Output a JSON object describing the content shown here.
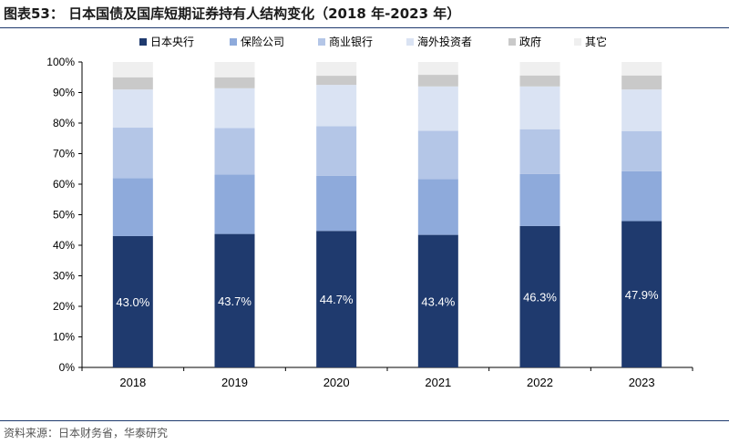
{
  "title": "图表53：  日本国债及国库短期证券持有人结构变化（2018 年-2023 年）",
  "source": "资料来源：日本财务省，华泰研究",
  "chart_data": {
    "type": "bar",
    "stacked": true,
    "normalized": true,
    "categories": [
      "2018",
      "2019",
      "2020",
      "2021",
      "2022",
      "2023"
    ],
    "series": [
      {
        "name": "日本央行",
        "color": "#1f3a6e",
        "values": [
          43.0,
          43.7,
          44.7,
          43.4,
          46.3,
          47.9
        ],
        "labels": [
          "43.0%",
          "43.7%",
          "44.7%",
          "43.4%",
          "46.3%",
          "47.9%"
        ]
      },
      {
        "name": "保险公司",
        "color": "#8eaadb",
        "values": [
          19.0,
          19.5,
          18.0,
          18.3,
          17.0,
          16.3
        ]
      },
      {
        "name": "商业银行",
        "color": "#b4c6e7",
        "values": [
          16.5,
          15.2,
          16.3,
          15.8,
          14.7,
          13.2
        ]
      },
      {
        "name": "海外投资者",
        "color": "#dae3f3",
        "values": [
          12.5,
          13.0,
          13.5,
          14.5,
          14.0,
          13.6
        ]
      },
      {
        "name": "政府",
        "color": "#c9c9c9",
        "values": [
          4.0,
          3.6,
          3.0,
          3.8,
          3.6,
          4.6
        ]
      },
      {
        "name": "其它",
        "color": "#efefef",
        "values": [
          5.0,
          5.0,
          4.5,
          4.2,
          4.4,
          4.4
        ]
      }
    ],
    "yticks": [
      "0%",
      "10%",
      "20%",
      "30%",
      "40%",
      "50%",
      "60%",
      "70%",
      "80%",
      "90%",
      "100%"
    ],
    "ylim": [
      0,
      100
    ],
    "legend_position": "top",
    "grid": false
  }
}
